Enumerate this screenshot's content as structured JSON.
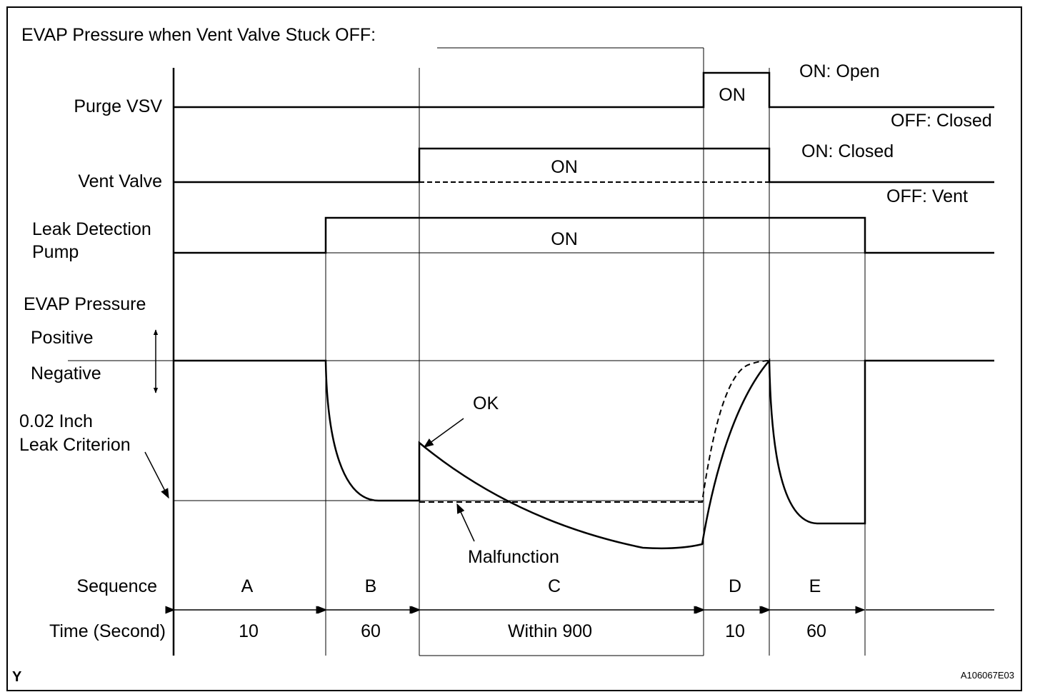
{
  "title": "EVAP Pressure when Vent Valve Stuck OFF:",
  "signals": {
    "purge_vsv": {
      "label": "Purge VSV",
      "on_label": "ON",
      "state_on": "ON: Open",
      "state_off": "OFF: Closed"
    },
    "vent_valve": {
      "label": "Vent Valve",
      "on_label": "ON",
      "state_on": "ON: Closed",
      "state_off": "OFF: Vent"
    },
    "leak_pump": {
      "label_line1": "Leak Detection",
      "label_line2": "Pump",
      "on_label": "ON"
    }
  },
  "pressure": {
    "label": "EVAP Pressure",
    "positive": "Positive",
    "negative": "Negative",
    "criterion_line1": "0.02 Inch",
    "criterion_line2": "Leak Criterion",
    "ok": "OK",
    "malfunction": "Malfunction"
  },
  "sequence": {
    "label": "Sequence",
    "time_label": "Time (Second)",
    "steps": [
      {
        "id": "A",
        "time": "10"
      },
      {
        "id": "B",
        "time": "60"
      },
      {
        "id": "C",
        "time": "Within 900"
      },
      {
        "id": "D",
        "time": "10"
      },
      {
        "id": "E",
        "time": "60"
      }
    ]
  },
  "footer": {
    "corner_mark": "Y",
    "figure_id": "A106067E03"
  }
}
